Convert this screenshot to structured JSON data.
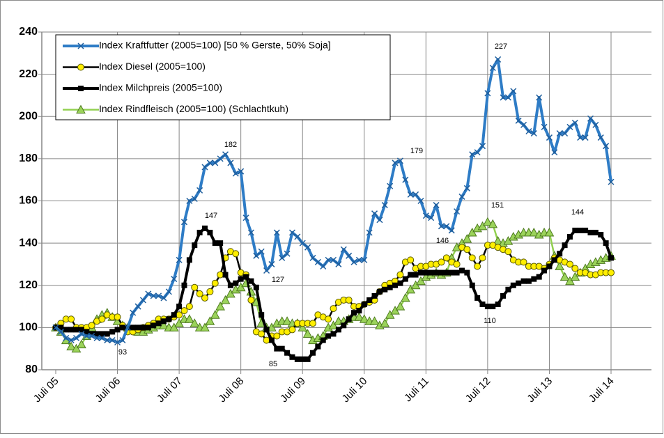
{
  "chart_data": {
    "type": "line",
    "categories": [
      "Juli 05",
      null,
      null,
      null,
      null,
      null,
      null,
      null,
      null,
      null,
      null,
      null,
      "Juli 06",
      null,
      null,
      null,
      null,
      null,
      null,
      null,
      null,
      null,
      null,
      null,
      "Juli 07",
      null,
      null,
      null,
      null,
      null,
      null,
      null,
      null,
      null,
      null,
      null,
      "Juli 08",
      null,
      null,
      null,
      null,
      null,
      null,
      null,
      null,
      null,
      null,
      null,
      "Juli 09",
      null,
      null,
      null,
      null,
      null,
      null,
      null,
      null,
      null,
      null,
      null,
      "Juli 10",
      null,
      null,
      null,
      null,
      null,
      null,
      null,
      null,
      null,
      null,
      null,
      "Juli 11",
      null,
      null,
      null,
      null,
      null,
      null,
      null,
      null,
      null,
      null,
      null,
      "Juli 12",
      null,
      null,
      null,
      null,
      null,
      null,
      null,
      null,
      null,
      null,
      null,
      "Juli 13",
      null,
      null,
      null,
      null,
      null,
      null,
      null,
      null,
      null,
      null,
      null,
      "Juli 14"
    ],
    "series": [
      {
        "name": "Index Kraftfutter (2005=100) [50 % Gerste, 50%  Soja]",
        "color": "#2e7cc6",
        "marker": "x",
        "marker_fill": "#2e7cc6",
        "marker_stroke": "#1f5e9c",
        "values": [
          100,
          98,
          95,
          94,
          95,
          97,
          96,
          96,
          95,
          95,
          94,
          94,
          93,
          94,
          100,
          107,
          110,
          113,
          116,
          115,
          115,
          114,
          117,
          123,
          132,
          150,
          160,
          161,
          165,
          176,
          178,
          178,
          180,
          182,
          178,
          173,
          174,
          152,
          145,
          134,
          136,
          127,
          130,
          145,
          133,
          135,
          145,
          143,
          140,
          138,
          133,
          131,
          129,
          132,
          132,
          130,
          137,
          134,
          131,
          132,
          132,
          145,
          154,
          151,
          158,
          167,
          178,
          179,
          170,
          163,
          163,
          160,
          153,
          152,
          158,
          148,
          148,
          146,
          155,
          162,
          166,
          182,
          183,
          186,
          211,
          223,
          227,
          209,
          209,
          212,
          198,
          196,
          193,
          192,
          209,
          195,
          190,
          183,
          192,
          192,
          195,
          197,
          190,
          190,
          199,
          196,
          190,
          186,
          169
        ]
      },
      {
        "name": "Index Diesel (2005=100)",
        "color": "#000000",
        "marker": "circle",
        "marker_fill": "#ffee00",
        "marker_stroke": "#5a5a00",
        "values": [
          100,
          102,
          104,
          104,
          100,
          100,
          100,
          101,
          103,
          104,
          106,
          105,
          105,
          101,
          98,
          98,
          99,
          100,
          101,
          102,
          104,
          104,
          104,
          105,
          106,
          108,
          110,
          119,
          116,
          114,
          117,
          121,
          125,
          133,
          136,
          135,
          126,
          125,
          113,
          98,
          97,
          94,
          96,
          96,
          98,
          98,
          99,
          102,
          102,
          102,
          102,
          106,
          105,
          104,
          109,
          112,
          113,
          113,
          110,
          110,
          111,
          112,
          113,
          117,
          120,
          121,
          122,
          125,
          131,
          132,
          128,
          129,
          129,
          130,
          130,
          131,
          133,
          131,
          130,
          138,
          137,
          133,
          129,
          133,
          139,
          139,
          138,
          137,
          136,
          132,
          131,
          131,
          129,
          129,
          129,
          128,
          130,
          133,
          132,
          131,
          130,
          128,
          126,
          126,
          125,
          125,
          126,
          126,
          126
        ]
      },
      {
        "name": "Index Milchpreis (2005=100)",
        "color": "#000000",
        "marker": "square",
        "marker_fill": "#000000",
        "marker_stroke": "#000000",
        "values": [
          100,
          100,
          99,
          99,
          99,
          99,
          98,
          97,
          97,
          97,
          97,
          98,
          99,
          100,
          100,
          100,
          100,
          100,
          100,
          101,
          102,
          103,
          104,
          106,
          110,
          120,
          132,
          139,
          145,
          147,
          145,
          140,
          140,
          125,
          120,
          121,
          123,
          124,
          122,
          119,
          106,
          99,
          94,
          90,
          90,
          88,
          86,
          85,
          85,
          85,
          88,
          91,
          94,
          96,
          97,
          99,
          101,
          104,
          107,
          108,
          111,
          113,
          115,
          117,
          118,
          119,
          120,
          121,
          123,
          125,
          125,
          126,
          126,
          126,
          126,
          126,
          126,
          126,
          126,
          127,
          126,
          120,
          114,
          111,
          110,
          110,
          111,
          115,
          118,
          120,
          121,
          122,
          122,
          123,
          124,
          127,
          129,
          132,
          135,
          139,
          143,
          146,
          146,
          146,
          145,
          145,
          144,
          140,
          133
        ]
      },
      {
        "name": "Index Rindfleisch (2005=100)  (Schlachtkuh)",
        "color": "#92d050",
        "marker": "triangle",
        "marker_fill": "#9bd35a",
        "marker_stroke": "#4e7a1f",
        "values": [
          100,
          98,
          94,
          91,
          90,
          92,
          96,
          100,
          104,
          106,
          107,
          105,
          103,
          101,
          100,
          99,
          98,
          98,
          99,
          100,
          101,
          101,
          100,
          100,
          102,
          104,
          104,
          102,
          100,
          100,
          103,
          106,
          110,
          113,
          116,
          118,
          119,
          121,
          117,
          112,
          102,
          100,
          100,
          102,
          103,
          103,
          102,
          102,
          100,
          97,
          94,
          95,
          96,
          100,
          101,
          103,
          103,
          104,
          105,
          105,
          104,
          103,
          103,
          101,
          102,
          106,
          108,
          110,
          114,
          118,
          120,
          122,
          124,
          125,
          126,
          125,
          126,
          133,
          138,
          140,
          142,
          145,
          147,
          148,
          150,
          149,
          141,
          140,
          141,
          143,
          144,
          145,
          145,
          145,
          144,
          145,
          145,
          134,
          129,
          124,
          122,
          124,
          126,
          128,
          130,
          131,
          132,
          133,
          134
        ]
      }
    ],
    "ylim": [
      80,
      240
    ],
    "yticks": [
      80,
      100,
      120,
      140,
      160,
      180,
      200,
      220,
      240
    ],
    "grid": true,
    "legend": "upper left",
    "annotations": [
      "182",
      "147",
      "127",
      "93",
      "85",
      "179",
      "146",
      "151",
      "110",
      "227",
      "144"
    ]
  }
}
